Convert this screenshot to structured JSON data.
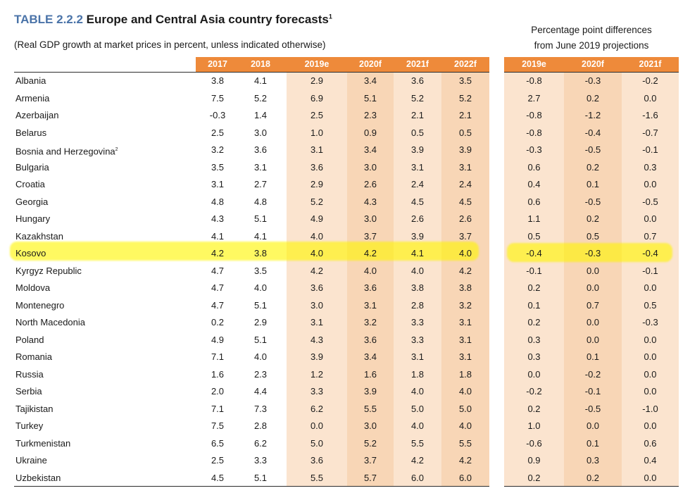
{
  "title": {
    "number": "TABLE 2.2.2",
    "text": "Europe and Central Asia country forecasts",
    "footnote_mark": "1"
  },
  "subtitle": "(Real GDP growth at market prices in percent, unless indicated otherwise)",
  "diff_header": {
    "line1": "Percentage point differences",
    "line2": "from June 2019 projections"
  },
  "columns": [
    "2017",
    "2018",
    "2019e",
    "2020f",
    "2021f",
    "2022f"
  ],
  "diff_columns": [
    "2019e",
    "2020f",
    "2021f"
  ],
  "colors": {
    "header_orange": "#ee8a3a",
    "shade_light": "#fbe4cf",
    "shade_dark": "#f8d6b6",
    "title_blue": "#4a73a8",
    "highlight": "#fff600"
  },
  "highlighted_country": "Kosovo",
  "rows": [
    {
      "country": "Albania",
      "note": "",
      "v": [
        "3.8",
        "4.1",
        "2.9",
        "3.4",
        "3.6",
        "3.5"
      ],
      "d": [
        "-0.8",
        "-0.3",
        "-0.2"
      ]
    },
    {
      "country": "Armenia",
      "note": "",
      "v": [
        "7.5",
        "5.2",
        "6.9",
        "5.1",
        "5.2",
        "5.2"
      ],
      "d": [
        "2.7",
        "0.2",
        "0.0"
      ]
    },
    {
      "country": "Azerbaijan",
      "note": "",
      "v": [
        "-0.3",
        "1.4",
        "2.5",
        "2.3",
        "2.1",
        "2.1"
      ],
      "d": [
        "-0.8",
        "-1.2",
        "-1.6"
      ]
    },
    {
      "country": "Belarus",
      "note": "",
      "v": [
        "2.5",
        "3.0",
        "1.0",
        "0.9",
        "0.5",
        "0.5"
      ],
      "d": [
        "-0.8",
        "-0.4",
        "-0.7"
      ]
    },
    {
      "country": "Bosnia and Herzegovina",
      "note": "2",
      "v": [
        "3.2",
        "3.6",
        "3.1",
        "3.4",
        "3.9",
        "3.9"
      ],
      "d": [
        "-0.3",
        "-0.5",
        "-0.1"
      ]
    },
    {
      "country": "Bulgaria",
      "note": "",
      "v": [
        "3.5",
        "3.1",
        "3.6",
        "3.0",
        "3.1",
        "3.1"
      ],
      "d": [
        "0.6",
        "0.2",
        "0.3"
      ]
    },
    {
      "country": "Croatia",
      "note": "",
      "v": [
        "3.1",
        "2.7",
        "2.9",
        "2.6",
        "2.4",
        "2.4"
      ],
      "d": [
        "0.4",
        "0.1",
        "0.0"
      ]
    },
    {
      "country": "Georgia",
      "note": "",
      "v": [
        "4.8",
        "4.8",
        "5.2",
        "4.3",
        "4.5",
        "4.5"
      ],
      "d": [
        "0.6",
        "-0.5",
        "-0.5"
      ]
    },
    {
      "country": "Hungary",
      "note": "",
      "v": [
        "4.3",
        "5.1",
        "4.9",
        "3.0",
        "2.6",
        "2.6"
      ],
      "d": [
        "1.1",
        "0.2",
        "0.0"
      ]
    },
    {
      "country": "Kazakhstan",
      "note": "",
      "v": [
        "4.1",
        "4.1",
        "4.0",
        "3.7",
        "3.9",
        "3.7"
      ],
      "d": [
        "0.5",
        "0.5",
        "0.7"
      ]
    },
    {
      "country": "Kosovo",
      "note": "",
      "v": [
        "4.2",
        "3.8",
        "4.0",
        "4.2",
        "4.1",
        "4.0"
      ],
      "d": [
        "-0.4",
        "-0.3",
        "-0.4"
      ]
    },
    {
      "country": "Kyrgyz Republic",
      "note": "",
      "v": [
        "4.7",
        "3.5",
        "4.2",
        "4.0",
        "4.0",
        "4.2"
      ],
      "d": [
        "-0.1",
        "0.0",
        "-0.1"
      ]
    },
    {
      "country": "Moldova",
      "note": "",
      "v": [
        "4.7",
        "4.0",
        "3.6",
        "3.6",
        "3.8",
        "3.8"
      ],
      "d": [
        "0.2",
        "0.0",
        "0.0"
      ]
    },
    {
      "country": "Montenegro",
      "note": "",
      "v": [
        "4.7",
        "5.1",
        "3.0",
        "3.1",
        "2.8",
        "3.2"
      ],
      "d": [
        "0.1",
        "0.7",
        "0.5"
      ]
    },
    {
      "country": "North Macedonia",
      "note": "",
      "v": [
        "0.2",
        "2.9",
        "3.1",
        "3.2",
        "3.3",
        "3.1"
      ],
      "d": [
        "0.2",
        "0.0",
        "-0.3"
      ]
    },
    {
      "country": "Poland",
      "note": "",
      "v": [
        "4.9",
        "5.1",
        "4.3",
        "3.6",
        "3.3",
        "3.1"
      ],
      "d": [
        "0.3",
        "0.0",
        "0.0"
      ]
    },
    {
      "country": "Romania",
      "note": "",
      "v": [
        "7.1",
        "4.0",
        "3.9",
        "3.4",
        "3.1",
        "3.1"
      ],
      "d": [
        "0.3",
        "0.1",
        "0.0"
      ]
    },
    {
      "country": "Russia",
      "note": "",
      "v": [
        "1.6",
        "2.3",
        "1.2",
        "1.6",
        "1.8",
        "1.8"
      ],
      "d": [
        "0.0",
        "-0.2",
        "0.0"
      ]
    },
    {
      "country": "Serbia",
      "note": "",
      "v": [
        "2.0",
        "4.4",
        "3.3",
        "3.9",
        "4.0",
        "4.0"
      ],
      "d": [
        "-0.2",
        "-0.1",
        "0.0"
      ]
    },
    {
      "country": "Tajikistan",
      "note": "",
      "v": [
        "7.1",
        "7.3",
        "6.2",
        "5.5",
        "5.0",
        "5.0"
      ],
      "d": [
        "0.2",
        "-0.5",
        "-1.0"
      ]
    },
    {
      "country": "Turkey",
      "note": "",
      "v": [
        "7.5",
        "2.8",
        "0.0",
        "3.0",
        "4.0",
        "4.0"
      ],
      "d": [
        "1.0",
        "0.0",
        "0.0"
      ]
    },
    {
      "country": "Turkmenistan",
      "note": "",
      "v": [
        "6.5",
        "6.2",
        "5.0",
        "5.2",
        "5.5",
        "5.5"
      ],
      "d": [
        "-0.6",
        "0.1",
        "0.6"
      ]
    },
    {
      "country": "Ukraine",
      "note": "",
      "v": [
        "2.5",
        "3.3",
        "3.6",
        "3.7",
        "4.2",
        "4.2"
      ],
      "d": [
        "0.9",
        "0.3",
        "0.4"
      ]
    },
    {
      "country": "Uzbekistan",
      "note": "",
      "v": [
        "4.5",
        "5.1",
        "5.5",
        "5.7",
        "6.0",
        "6.0"
      ],
      "d": [
        "0.2",
        "0.2",
        "0.0"
      ]
    }
  ]
}
